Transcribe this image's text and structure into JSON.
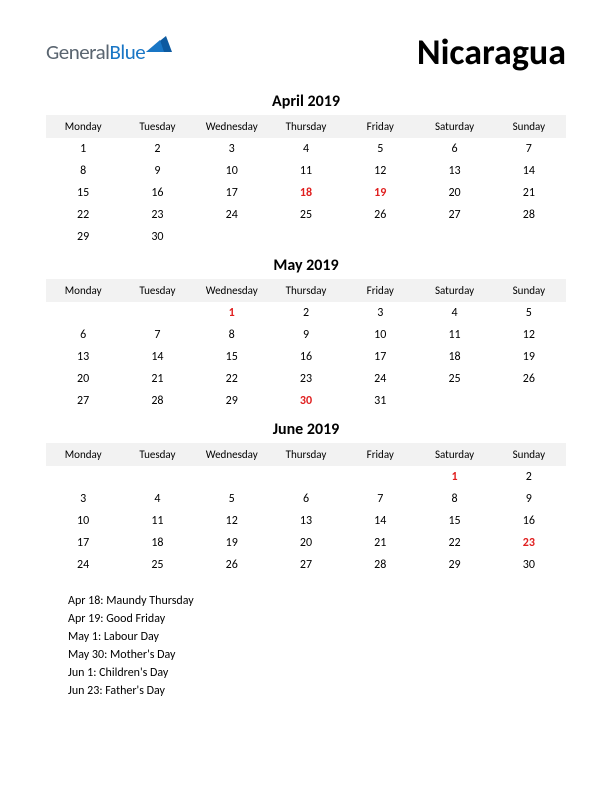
{
  "logo": {
    "part1": "General",
    "part2": "Blue"
  },
  "country": "Nicaragua",
  "colors": {
    "background": "#ffffff",
    "header_bg": "#f2f2f2",
    "text": "#000000",
    "holiday": "#e02020",
    "logo_gray": "#5a6570",
    "logo_blue": "#1976c5",
    "logo_triangle": "#0d5aa0"
  },
  "day_headers": [
    "Monday",
    "Tuesday",
    "Wednesday",
    "Thursday",
    "Friday",
    "Saturday",
    "Sunday"
  ],
  "months": [
    {
      "title": "April 2019",
      "weeks": [
        [
          {
            "d": "1"
          },
          {
            "d": "2"
          },
          {
            "d": "3"
          },
          {
            "d": "4"
          },
          {
            "d": "5"
          },
          {
            "d": "6"
          },
          {
            "d": "7"
          }
        ],
        [
          {
            "d": "8"
          },
          {
            "d": "9"
          },
          {
            "d": "10"
          },
          {
            "d": "11"
          },
          {
            "d": "12"
          },
          {
            "d": "13"
          },
          {
            "d": "14"
          }
        ],
        [
          {
            "d": "15"
          },
          {
            "d": "16"
          },
          {
            "d": "17"
          },
          {
            "d": "18",
            "h": true
          },
          {
            "d": "19",
            "h": true
          },
          {
            "d": "20"
          },
          {
            "d": "21"
          }
        ],
        [
          {
            "d": "22"
          },
          {
            "d": "23"
          },
          {
            "d": "24"
          },
          {
            "d": "25"
          },
          {
            "d": "26"
          },
          {
            "d": "27"
          },
          {
            "d": "28"
          }
        ],
        [
          {
            "d": "29"
          },
          {
            "d": "30"
          },
          {
            "d": ""
          },
          {
            "d": ""
          },
          {
            "d": ""
          },
          {
            "d": ""
          },
          {
            "d": ""
          }
        ]
      ]
    },
    {
      "title": "May 2019",
      "weeks": [
        [
          {
            "d": ""
          },
          {
            "d": ""
          },
          {
            "d": "1",
            "h": true
          },
          {
            "d": "2"
          },
          {
            "d": "3"
          },
          {
            "d": "4"
          },
          {
            "d": "5"
          }
        ],
        [
          {
            "d": "6"
          },
          {
            "d": "7"
          },
          {
            "d": "8"
          },
          {
            "d": "9"
          },
          {
            "d": "10"
          },
          {
            "d": "11"
          },
          {
            "d": "12"
          }
        ],
        [
          {
            "d": "13"
          },
          {
            "d": "14"
          },
          {
            "d": "15"
          },
          {
            "d": "16"
          },
          {
            "d": "17"
          },
          {
            "d": "18"
          },
          {
            "d": "19"
          }
        ],
        [
          {
            "d": "20"
          },
          {
            "d": "21"
          },
          {
            "d": "22"
          },
          {
            "d": "23"
          },
          {
            "d": "24"
          },
          {
            "d": "25"
          },
          {
            "d": "26"
          }
        ],
        [
          {
            "d": "27"
          },
          {
            "d": "28"
          },
          {
            "d": "29"
          },
          {
            "d": "30",
            "h": true
          },
          {
            "d": "31"
          },
          {
            "d": ""
          },
          {
            "d": ""
          }
        ]
      ]
    },
    {
      "title": "June 2019",
      "weeks": [
        [
          {
            "d": ""
          },
          {
            "d": ""
          },
          {
            "d": ""
          },
          {
            "d": ""
          },
          {
            "d": ""
          },
          {
            "d": "1",
            "h": true
          },
          {
            "d": "2"
          }
        ],
        [
          {
            "d": "3"
          },
          {
            "d": "4"
          },
          {
            "d": "5"
          },
          {
            "d": "6"
          },
          {
            "d": "7"
          },
          {
            "d": "8"
          },
          {
            "d": "9"
          }
        ],
        [
          {
            "d": "10"
          },
          {
            "d": "11"
          },
          {
            "d": "12"
          },
          {
            "d": "13"
          },
          {
            "d": "14"
          },
          {
            "d": "15"
          },
          {
            "d": "16"
          }
        ],
        [
          {
            "d": "17"
          },
          {
            "d": "18"
          },
          {
            "d": "19"
          },
          {
            "d": "20"
          },
          {
            "d": "21"
          },
          {
            "d": "22"
          },
          {
            "d": "23",
            "h": true
          }
        ],
        [
          {
            "d": "24"
          },
          {
            "d": "25"
          },
          {
            "d": "26"
          },
          {
            "d": "27"
          },
          {
            "d": "28"
          },
          {
            "d": "29"
          },
          {
            "d": "30"
          }
        ]
      ]
    }
  ],
  "holiday_list": [
    "Apr 18: Maundy Thursday",
    "Apr 19: Good Friday",
    "May 1: Labour Day",
    "May 30: Mother's Day",
    "Jun 1: Children's Day",
    "Jun 23: Father's Day"
  ]
}
